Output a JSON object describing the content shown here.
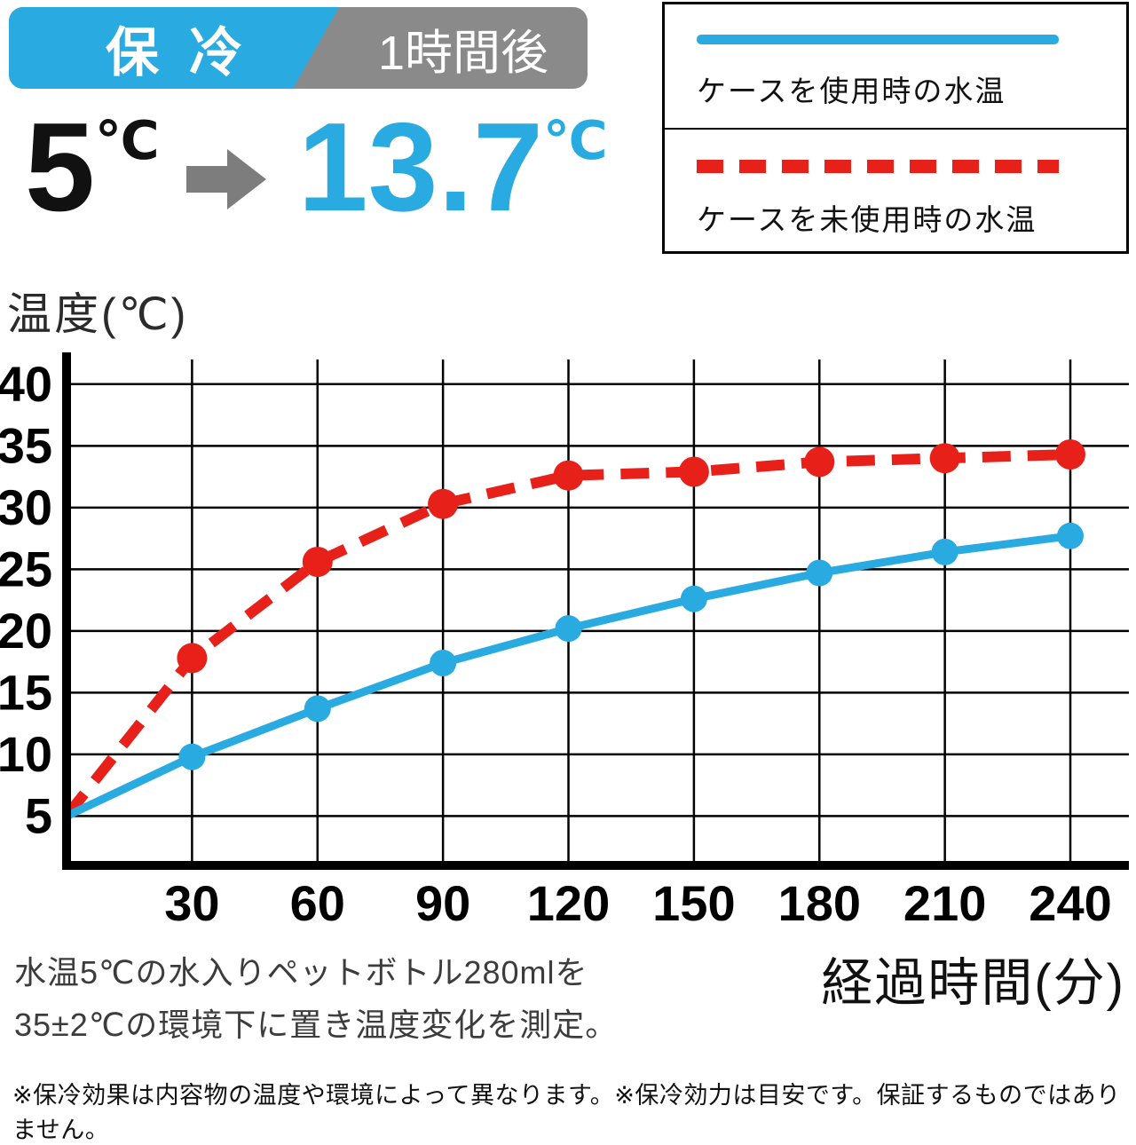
{
  "header": {
    "badge_label": "保冷",
    "badge_time": "1時間後",
    "temp_before": "5",
    "temp_after": "13.7",
    "unit": "℃"
  },
  "legend": {
    "items": [
      {
        "label": "ケースを使用時の水温",
        "line_style": "solid",
        "color": "#29abe2"
      },
      {
        "label": "ケースを未使用時の水温",
        "line_style": "dashed",
        "color": "#e7211a"
      }
    ]
  },
  "chart_data": {
    "type": "line",
    "title": "温度(℃)",
    "xlabel": "経過時間(分)",
    "ylabel": "温度(℃)",
    "x": [
      0,
      30,
      60,
      90,
      120,
      150,
      180,
      210,
      240
    ],
    "x_tick_labels": [
      "30",
      "60",
      "90",
      "120",
      "150",
      "180",
      "210",
      "240"
    ],
    "y_ticks": [
      5,
      10,
      15,
      20,
      25,
      30,
      35,
      40
    ],
    "ylim": [
      1,
      42
    ],
    "xlim": [
      0,
      254
    ],
    "grid": true,
    "legend_position": "top-right",
    "series": [
      {
        "name": "ケースを使用時の水温",
        "color": "#29abe2",
        "style": "solid",
        "values": [
          5,
          9.8,
          13.7,
          17.4,
          20.2,
          22.6,
          24.7,
          26.4,
          27.7
        ]
      },
      {
        "name": "ケースを未使用時の水温",
        "color": "#e7211a",
        "style": "dashed",
        "values": [
          5,
          17.8,
          25.6,
          30.3,
          32.6,
          32.9,
          33.7,
          34.0,
          34.3
        ]
      }
    ]
  },
  "notes": {
    "measurement_line1": "水温5℃の水入りペットボトル280mlを",
    "measurement_line2": "35±2℃の環境下に置き温度変化を測定。",
    "disclaimer": "※保冷効果は内容物の温度や環境によって異なります。※保冷効力は目安です。保証するものではありません。"
  },
  "colors": {
    "blue": "#29abe2",
    "red": "#e7211a",
    "gray": "#8a8a8a"
  }
}
